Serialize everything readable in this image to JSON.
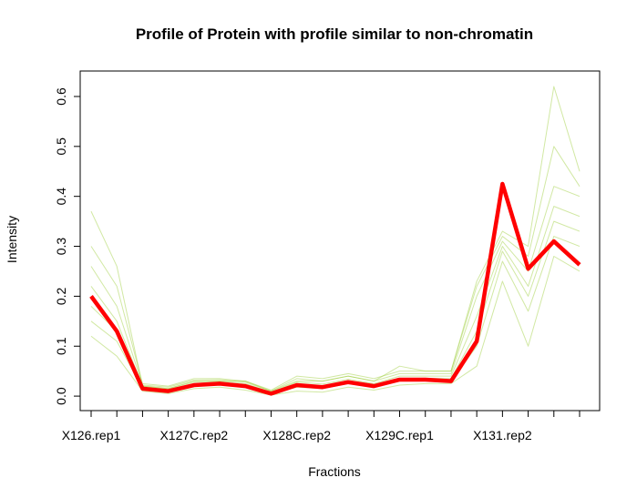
{
  "chart_data": {
    "type": "line",
    "title": "Profile of Protein with profile similar to non-chromatin",
    "x_label": "Fractions",
    "y_label": "Intensity",
    "categories": [
      "X126.rep1",
      null,
      null,
      null,
      "X127C.rep2",
      null,
      null,
      null,
      "X128C.rep2",
      null,
      null,
      null,
      "X129C.rep1",
      null,
      null,
      null,
      "X131.rep2",
      null,
      null,
      null
    ],
    "ylim": [
      -0.029,
      0.651
    ],
    "yticks": [
      {
        "value": 0,
        "label": "0.0"
      },
      0.1,
      0.2,
      0.3,
      0.4,
      0.5,
      0.6
    ],
    "series": [
      {
        "color": "#9ACD32",
        "values": [
          0.12,
          0.08,
          0.01,
          0.005,
          0.015,
          0.018,
          0.012,
          0.002,
          0.01,
          0.008,
          0.018,
          0.012,
          0.022,
          0.025,
          0.025,
          0.06,
          0.23,
          0.1,
          0.28,
          0.25
        ]
      },
      {
        "color": "#9ACD32",
        "values": [
          0.15,
          0.11,
          0.015,
          0.01,
          0.02,
          0.022,
          0.018,
          0.004,
          0.018,
          0.015,
          0.025,
          0.018,
          0.03,
          0.032,
          0.03,
          0.1,
          0.27,
          0.17,
          0.32,
          0.3
        ]
      },
      {
        "color": "#9ACD32",
        "values": [
          0.18,
          0.13,
          0.018,
          0.012,
          0.025,
          0.028,
          0.022,
          0.006,
          0.022,
          0.02,
          0.03,
          0.022,
          0.035,
          0.036,
          0.035,
          0.13,
          0.29,
          0.2,
          0.35,
          0.33
        ]
      },
      {
        "color": "#9ACD32",
        "values": [
          0.22,
          0.15,
          0.02,
          0.015,
          0.028,
          0.03,
          0.025,
          0.008,
          0.028,
          0.024,
          0.034,
          0.025,
          0.04,
          0.04,
          0.04,
          0.16,
          0.3,
          0.22,
          0.38,
          0.36
        ]
      },
      {
        "color": "#9ACD32",
        "values": [
          0.26,
          0.18,
          0.022,
          0.018,
          0.032,
          0.033,
          0.028,
          0.01,
          0.035,
          0.03,
          0.04,
          0.03,
          0.045,
          0.045,
          0.045,
          0.2,
          0.31,
          0.25,
          0.42,
          0.4
        ]
      },
      {
        "color": "#9ACD32",
        "values": [
          0.3,
          0.22,
          0.025,
          0.02,
          0.035,
          0.035,
          0.03,
          0.012,
          0.04,
          0.035,
          0.045,
          0.035,
          0.05,
          0.05,
          0.05,
          0.22,
          0.32,
          0.28,
          0.5,
          0.42
        ]
      },
      {
        "color": "#9ACD32",
        "values": [
          0.37,
          0.26,
          0.02,
          0.015,
          0.03,
          0.03,
          0.03,
          0.01,
          0.03,
          0.03,
          0.04,
          0.03,
          0.06,
          0.05,
          0.05,
          0.23,
          0.33,
          0.3,
          0.62,
          0.45
        ]
      },
      {
        "color": "#FF0000",
        "values": [
          0.2,
          0.13,
          0.015,
          0.01,
          0.022,
          0.025,
          0.02,
          0.005,
          0.022,
          0.018,
          0.028,
          0.02,
          0.033,
          0.033,
          0.03,
          0.11,
          0.425,
          0.255,
          0.31,
          0.263
        ]
      }
    ]
  }
}
